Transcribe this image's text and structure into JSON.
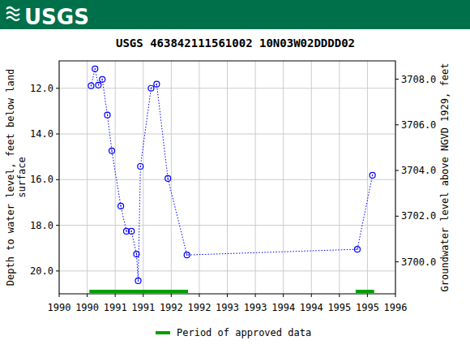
{
  "banner": "USGS",
  "chart_data": {
    "type": "line",
    "title": "USGS 463842111561002 10N03W02DDDD02",
    "ylabel": [
      "Depth to water level, feet below land",
      "surface"
    ],
    "y2label": "Groundwater level above NGVD 1929, feet",
    "x": [
      1990.57,
      1990.64,
      1990.7,
      1990.77,
      1990.86,
      1990.94,
      1991.1,
      1991.2,
      1991.29,
      1991.38,
      1991.41,
      1991.45,
      1991.64,
      1991.74,
      1991.94,
      1992.28,
      1995.32,
      1995.59
    ],
    "series": [
      {
        "color": "#0000ff",
        "marker": "circle",
        "line_style": "dotted",
        "axis": "y",
        "values": [
          11.89,
          11.15,
          11.86,
          11.61,
          13.17,
          14.74,
          17.16,
          18.26,
          18.26,
          19.26,
          20.43,
          15.42,
          12.0,
          11.82,
          15.95,
          19.3,
          19.05,
          15.81
        ]
      }
    ],
    "approved_periods": {
      "name": "Period of approved data",
      "color": "#00a000",
      "ranges": [
        [
          1990.54,
          1992.3
        ],
        [
          1995.29,
          1995.62
        ]
      ]
    },
    "legend": "bottom",
    "grid": true,
    "xlim": [
      1990,
      1996
    ],
    "xticks": [
      1990,
      {
        "value": 1990.5,
        "label": "1990"
      },
      1991,
      {
        "value": 1991.5,
        "label": "1991"
      },
      1992,
      {
        "value": 1992.5,
        "label": "1992"
      },
      1993,
      {
        "value": 1993.5,
        "label": "1993"
      },
      1994,
      {
        "value": 1994.5,
        "label": "1994"
      },
      1995,
      {
        "value": 1995.5,
        "label": "1995"
      },
      1996
    ],
    "ylim": [
      10.8,
      21.0
    ],
    "yticks": [
      {
        "value": 12,
        "label": "12.0"
      },
      {
        "value": 14,
        "label": "14.0"
      },
      {
        "value": 16,
        "label": "16.0"
      },
      {
        "value": 18,
        "label": "18.0"
      },
      {
        "value": 20,
        "label": "20.0"
      }
    ],
    "y2lim": [
      3708.8,
      3698.6
    ],
    "y2ticks": [
      {
        "value": 3708,
        "label": "3708.0"
      },
      {
        "value": 3706,
        "label": "3706.0"
      },
      {
        "value": 3704,
        "label": "3704.0"
      },
      {
        "value": 3702,
        "label": "3702.0"
      },
      {
        "value": 3700,
        "label": "3700.0"
      }
    ]
  }
}
